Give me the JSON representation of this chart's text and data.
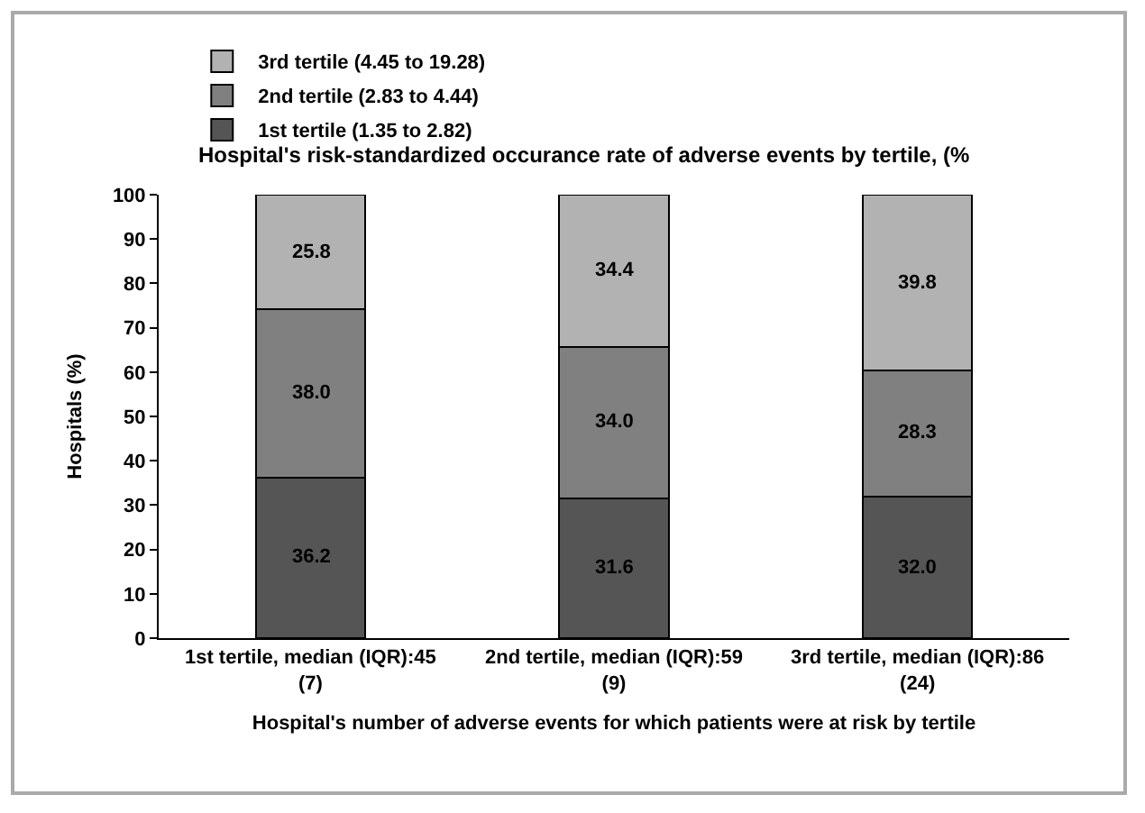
{
  "chart_data": {
    "type": "bar",
    "stacked": true,
    "legend_title": "Hospital's risk-standardized occurance rate of adverse events by tertile, (%",
    "xlabel": "Hospital's number of adverse events for which patients were at risk by tertile",
    "ylabel": "Hospitals (%)",
    "categories": [
      "1st tertile, median (IQR):45 (7)",
      "2nd tertile, median (IQR):59 (9)",
      "3rd tertile, median (IQR):86 (24)"
    ],
    "series": [
      {
        "name": "1st tertile (1.35 to 2.82)",
        "color": "#555555",
        "values": [
          36.2,
          31.6,
          32.0
        ],
        "value_labels": [
          "36.2",
          "31.6",
          "32.0"
        ]
      },
      {
        "name": "2nd tertile (2.83 to 4.44)",
        "color": "#808080",
        "values": [
          38.0,
          34.0,
          28.3
        ],
        "value_labels": [
          "38.0",
          "34.0",
          "28.3"
        ]
      },
      {
        "name": "3rd tertile (4.45 to 19.28)",
        "color": "#b2b2b2",
        "values": [
          25.8,
          34.4,
          39.8
        ],
        "value_labels": [
          "25.8",
          "34.4",
          "39.8"
        ]
      }
    ],
    "ylim": [
      0,
      100
    ],
    "yticks": [
      0,
      10,
      20,
      30,
      40,
      50,
      60,
      70,
      80,
      90,
      100
    ],
    "grid": false,
    "legend": "top left"
  }
}
